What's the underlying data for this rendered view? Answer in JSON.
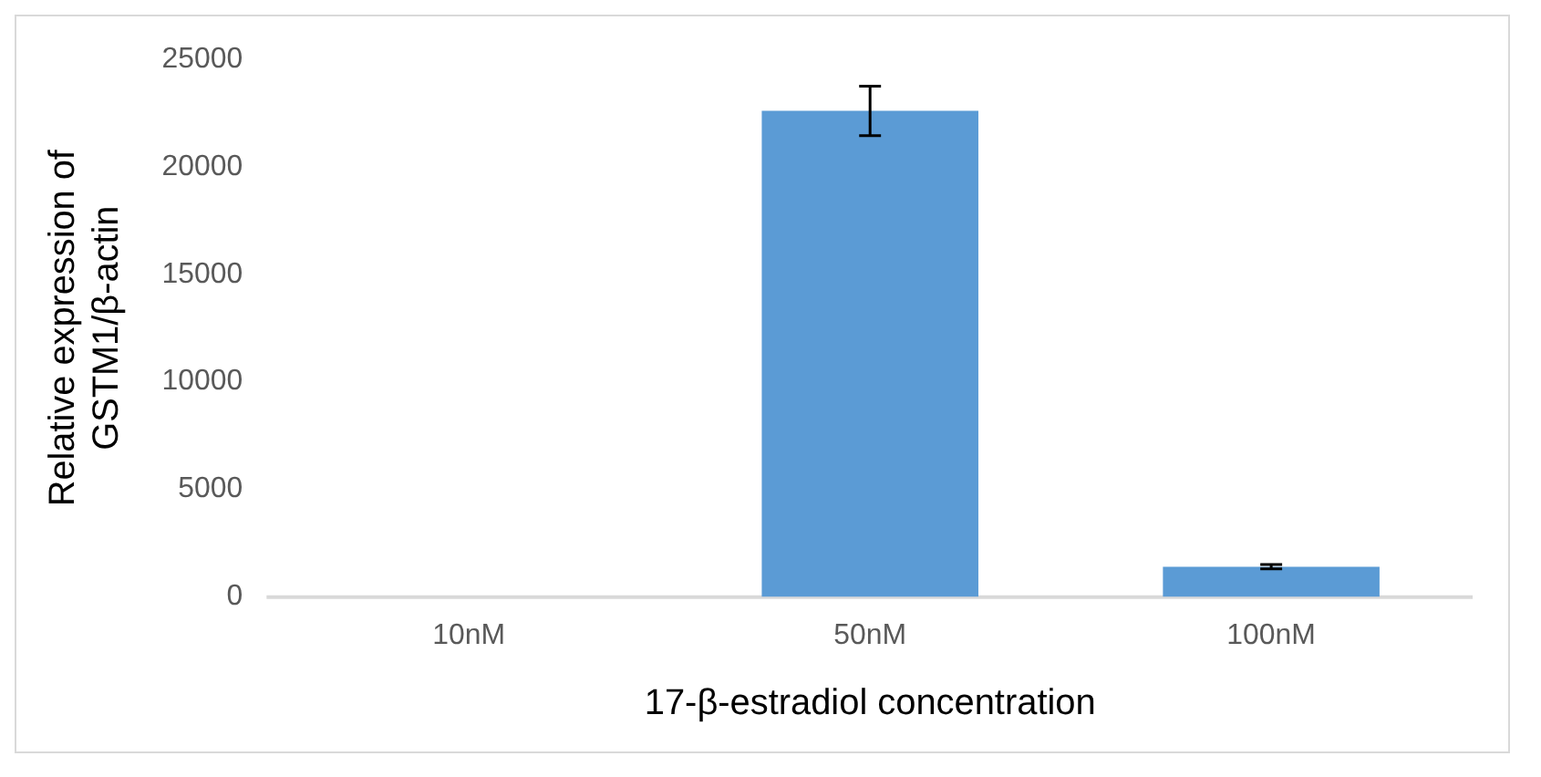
{
  "chart_data": {
    "type": "bar",
    "xlabel": "17-β-estradiol concentration",
    "ylabel": "Relative expression of GSTM1/β-actin",
    "categories": [
      "10nM",
      "50nM",
      "100nM"
    ],
    "values": [
      0,
      22600,
      1400
    ],
    "errors": [
      null,
      1150,
      100
    ],
    "color": "#5b9bd5",
    "ylim": [
      0,
      25000
    ],
    "yticks": [
      0,
      5000,
      10000,
      15000,
      20000,
      25000
    ],
    "grid": false,
    "legend": false
  }
}
